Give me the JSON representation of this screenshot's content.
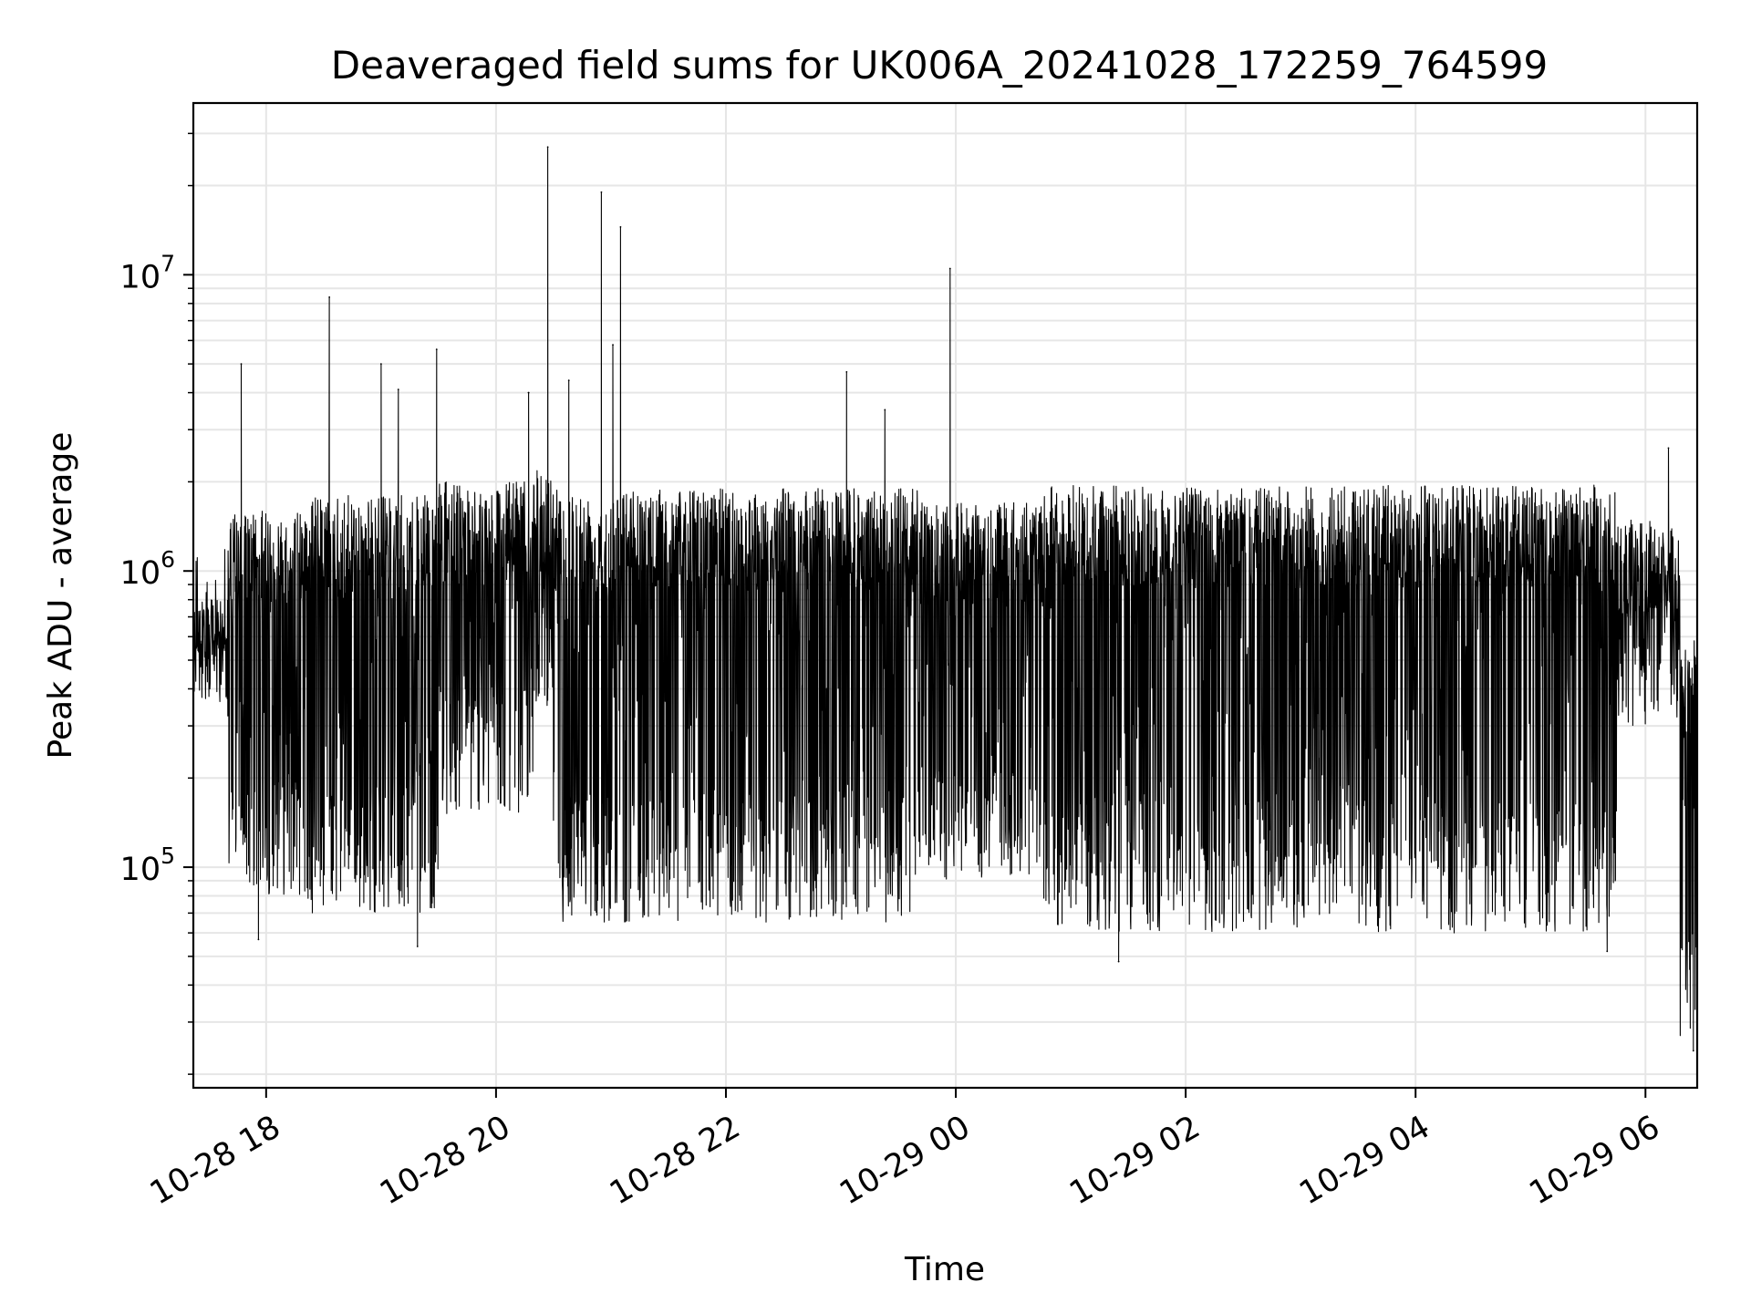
{
  "chart_data": {
    "type": "line",
    "title": "Deaveraged field sums for UK006A_20241028_172259_764599",
    "xlabel": "Time",
    "ylabel": "Peak ADU - average",
    "x_range": [
      "2024-10-28 17:22",
      "2024-10-29 06:27"
    ],
    "y_scale": "log",
    "ylim": [
      18000,
      38000000
    ],
    "grid": true,
    "line_color": "#000000",
    "grid_color": "#e6e6e6",
    "x_ticks": [
      {
        "label": "10-28 18",
        "value": "2024-10-28 18:00"
      },
      {
        "label": "10-28 20",
        "value": "2024-10-28 20:00"
      },
      {
        "label": "10-28 22",
        "value": "2024-10-28 22:00"
      },
      {
        "label": "10-29 00",
        "value": "2024-10-29 00:00"
      },
      {
        "label": "10-29 02",
        "value": "2024-10-29 02:00"
      },
      {
        "label": "10-29 04",
        "value": "2024-10-29 04:00"
      },
      {
        "label": "10-29 06",
        "value": "2024-10-29 06:00"
      }
    ],
    "y_ticks": [
      {
        "base": "10",
        "exp": "5",
        "value": 100000
      },
      {
        "base": "10",
        "exp": "6",
        "value": 1000000
      },
      {
        "base": "10",
        "exp": "7",
        "value": 10000000
      }
    ],
    "series": [
      {
        "segments": [
          {
            "start": "2024-10-28 17:22",
            "end": "2024-10-28 17:40",
            "upper": 800000,
            "lower": 450000
          },
          {
            "start": "2024-10-28 17:40",
            "end": "2024-10-28 18:20",
            "upper": 1600000,
            "lower": 80000
          },
          {
            "start": "2024-10-28 18:20",
            "end": "2024-10-28 19:30",
            "upper": 1800000,
            "lower": 70000
          },
          {
            "start": "2024-10-28 19:30",
            "end": "2024-10-28 20:20",
            "upper": 2000000,
            "lower": 150000
          },
          {
            "start": "2024-10-28 20:20",
            "end": "2024-10-28 20:30",
            "upper": 2200000,
            "lower": 350000
          },
          {
            "start": "2024-10-28 20:30",
            "end": "2024-10-28 23:40",
            "upper": 1900000,
            "lower": 65000
          },
          {
            "start": "2024-10-28 23:40",
            "end": "2024-10-29 00:45",
            "upper": 1700000,
            "lower": 90000
          },
          {
            "start": "2024-10-29 00:45",
            "end": "2024-10-29 05:45",
            "upper": 1950000,
            "lower": 60000
          },
          {
            "start": "2024-10-29 05:45",
            "end": "2024-10-29 06:18",
            "upper": 1500000,
            "lower": 300000
          },
          {
            "start": "2024-10-29 06:18",
            "end": "2024-10-29 06:27",
            "upper": 600000,
            "lower": 25000
          }
        ],
        "spikes": [
          {
            "x": "2024-10-28 17:47",
            "y": 5000000
          },
          {
            "x": "2024-10-28 18:33",
            "y": 8400000
          },
          {
            "x": "2024-10-28 19:00",
            "y": 5000000
          },
          {
            "x": "2024-10-28 19:09",
            "y": 4100000
          },
          {
            "x": "2024-10-28 19:29",
            "y": 5600000
          },
          {
            "x": "2024-10-28 20:17",
            "y": 4000000
          },
          {
            "x": "2024-10-28 20:17",
            "y": 4000000
          },
          {
            "x": "2024-10-28 20:27",
            "y": 27000000
          },
          {
            "x": "2024-10-28 20:38",
            "y": 4400000
          },
          {
            "x": "2024-10-28 20:55",
            "y": 19000000
          },
          {
            "x": "2024-10-28 21:01",
            "y": 5800000
          },
          {
            "x": "2024-10-28 21:05",
            "y": 14500000
          },
          {
            "x": "2024-10-28 23:03",
            "y": 4700000
          },
          {
            "x": "2024-10-28 23:23",
            "y": 3500000
          },
          {
            "x": "2024-10-28 23:57",
            "y": 10500000
          },
          {
            "x": "2024-10-29 06:12",
            "y": 2600000
          }
        ],
        "dips": [
          {
            "x": "2024-10-28 17:56",
            "y": 57000
          },
          {
            "x": "2024-10-28 19:19",
            "y": 54000
          },
          {
            "x": "2024-10-29 01:25",
            "y": 48000
          },
          {
            "x": "2024-10-29 05:40",
            "y": 52000
          },
          {
            "x": "2024-10-29 06:25",
            "y": 24000
          }
        ]
      }
    ]
  }
}
